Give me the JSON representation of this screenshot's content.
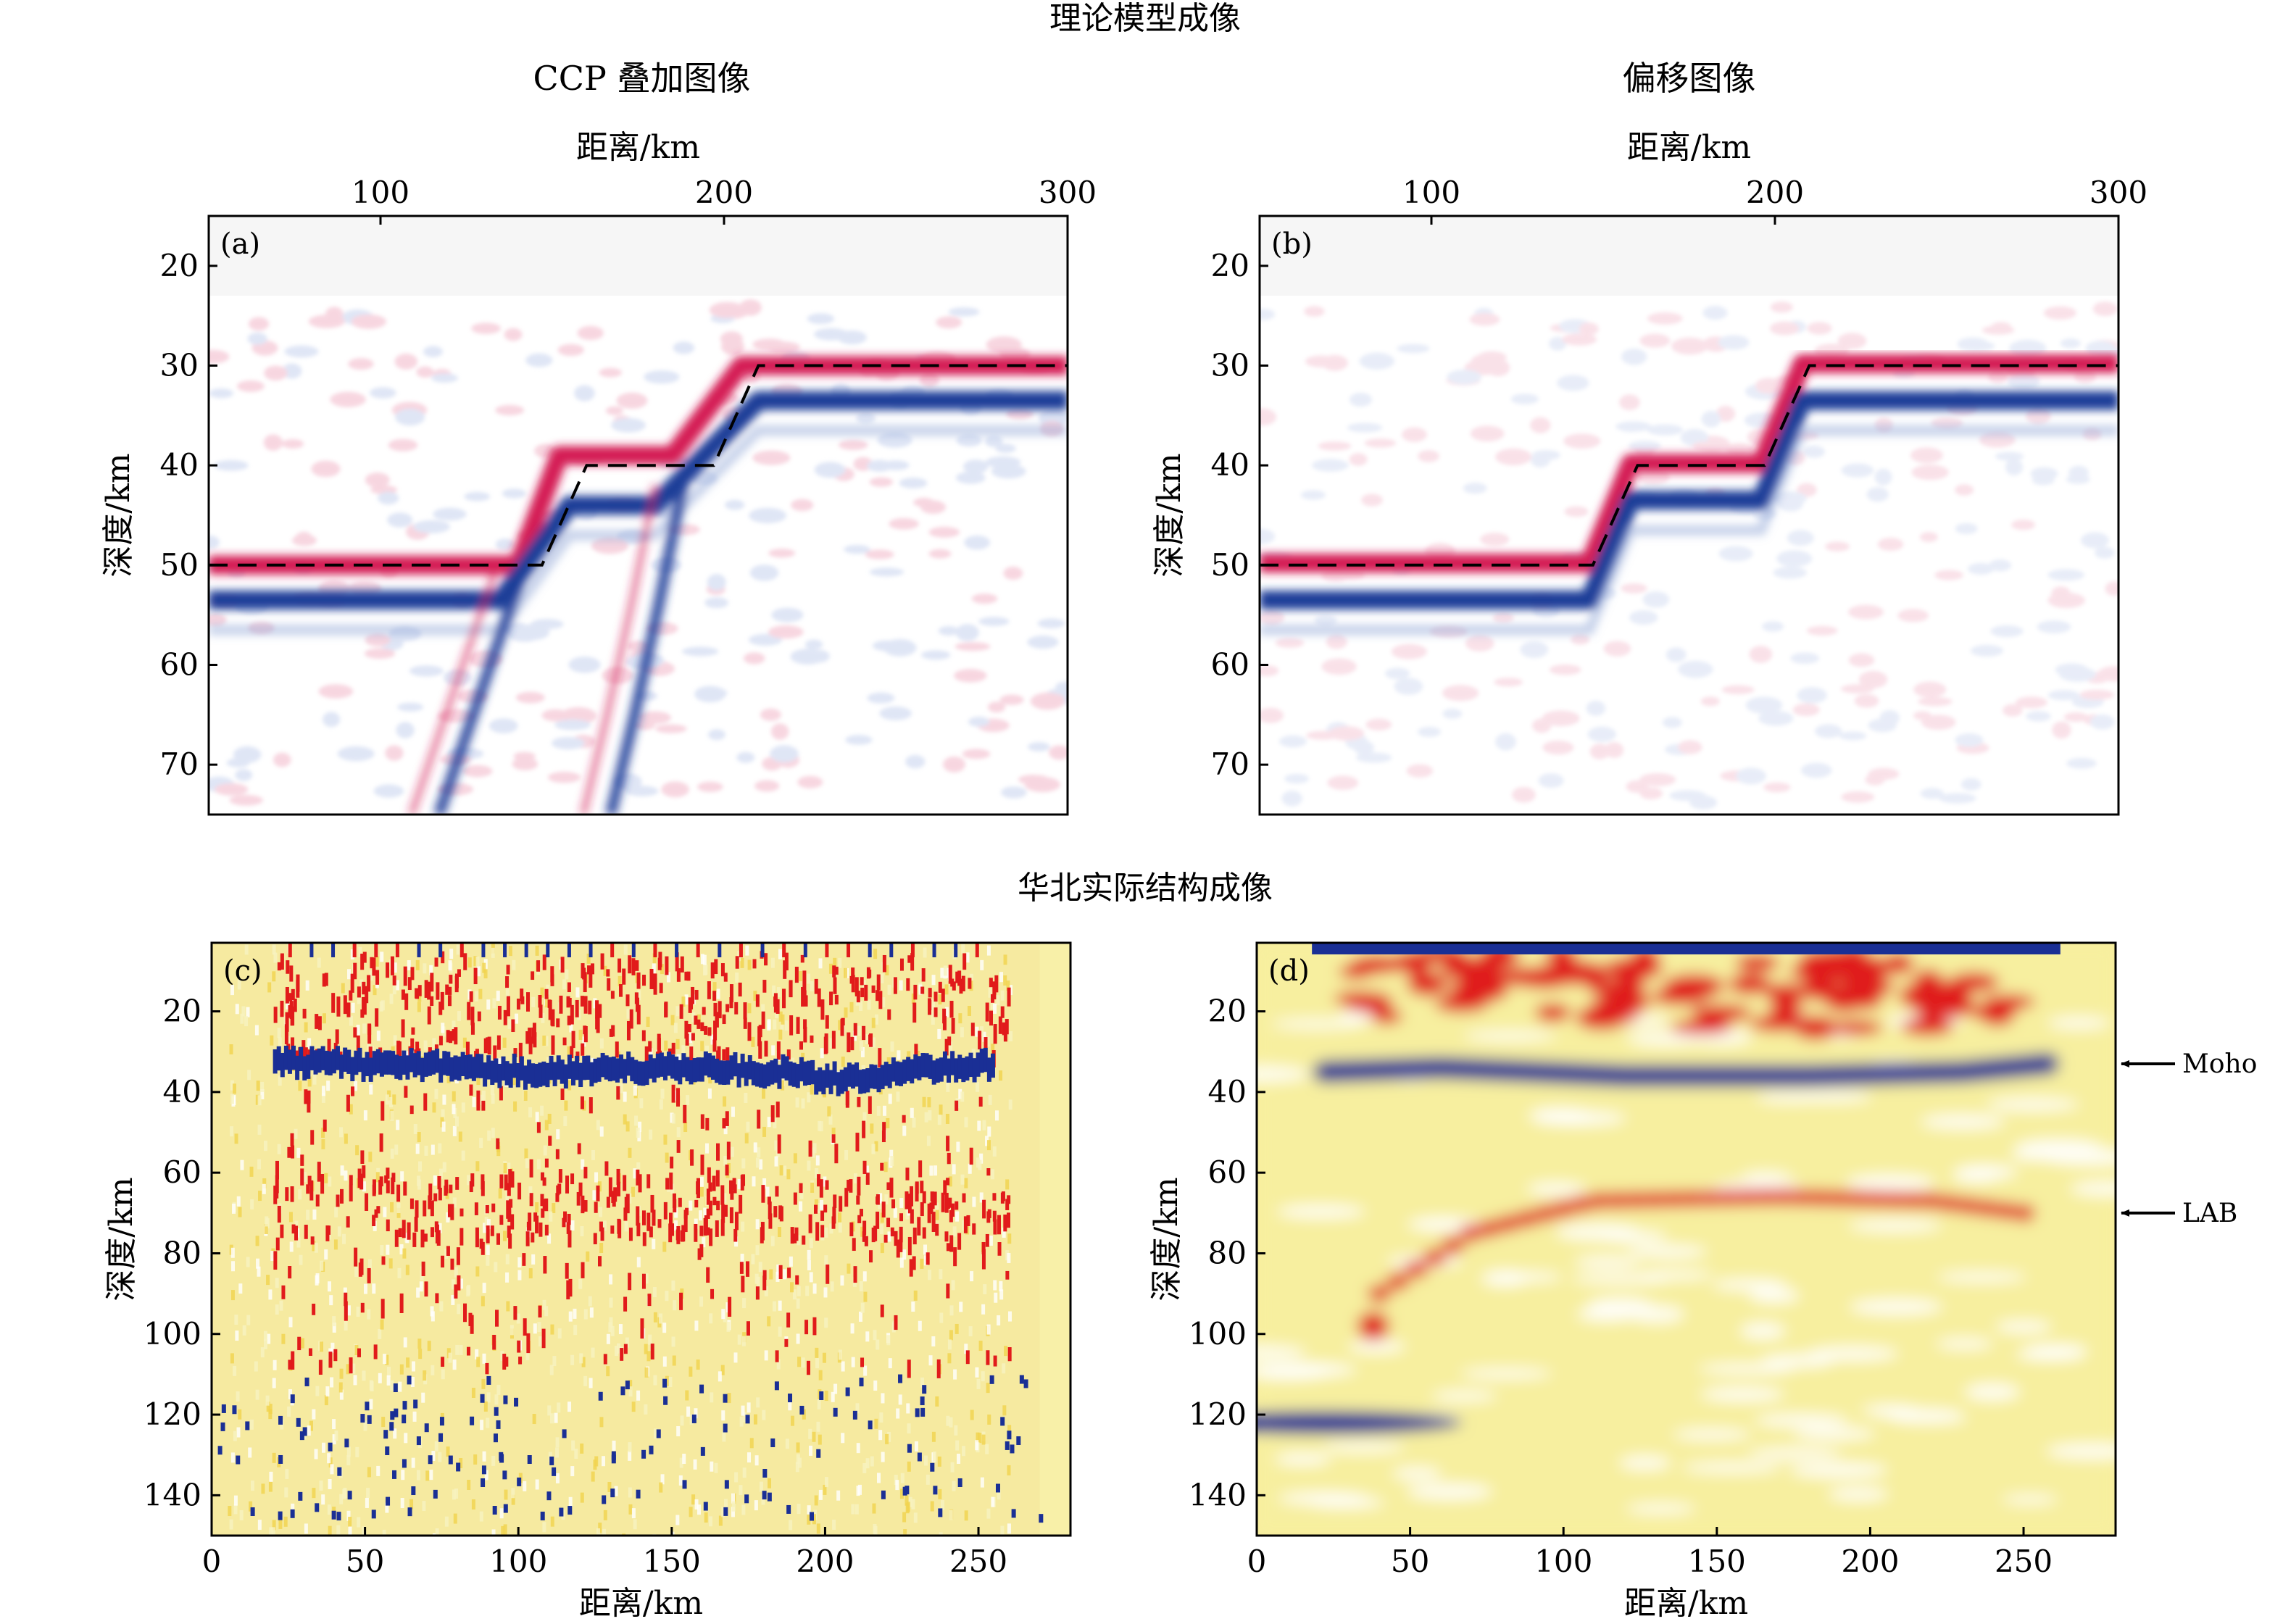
{
  "figure": {
    "section_top_title": "理论模型成像",
    "section_bottom_title": "华北实际结构成像"
  },
  "chart_data": [
    {
      "id": "a",
      "type": "heatmap",
      "panel_label": "(a)",
      "title": "CCP 叠加图像",
      "xlabel": "距离/km",
      "ylabel": "深度/km",
      "xlim": [
        50,
        300
      ],
      "ylim": [
        75,
        15
      ],
      "xticks": [
        100,
        200,
        300
      ],
      "yticks": [
        20,
        30,
        40,
        50,
        60,
        70
      ],
      "x_axis_position": "top",
      "colormap": [
        "#1f3f9a",
        "#ffffff",
        "#d6245a"
      ],
      "model_interface": {
        "x": [
          50,
          147,
          160,
          197,
          210,
          300
        ],
        "y": [
          50,
          50,
          40,
          40,
          30,
          30
        ]
      },
      "positive_band": {
        "x": [
          50,
          140,
          152,
          185,
          205,
          300
        ],
        "y": [
          50,
          50,
          39,
          39,
          30,
          30
        ]
      },
      "negative_band": {
        "x": [
          50,
          135,
          155,
          180,
          210,
          300
        ],
        "y": [
          53.5,
          53.5,
          44,
          44,
          33.5,
          33.5
        ]
      },
      "diffraction_tails": [
        {
          "x": [
            142,
            134,
            126,
            117
          ],
          "y": [
            50,
            58,
            66,
            75
          ]
        },
        {
          "x": [
            188,
            181,
            174,
            167
          ],
          "y": [
            42,
            54,
            65,
            75
          ]
        }
      ]
    },
    {
      "id": "b",
      "type": "heatmap",
      "panel_label": "(b)",
      "title": "偏移图像",
      "xlabel": "距离/km",
      "ylabel": "深度/km",
      "xlim": [
        50,
        300
      ],
      "ylim": [
        75,
        15
      ],
      "xticks": [
        100,
        200,
        300
      ],
      "yticks": [
        20,
        30,
        40,
        50,
        60,
        70
      ],
      "x_axis_position": "top",
      "colormap": [
        "#1f3f9a",
        "#ffffff",
        "#d6245a"
      ],
      "model_interface": {
        "x": [
          50,
          147,
          160,
          197,
          210,
          300
        ],
        "y": [
          50,
          50,
          40,
          40,
          30,
          30
        ]
      },
      "positive_band": {
        "x": [
          50,
          146,
          158,
          196,
          208,
          300
        ],
        "y": [
          49.8,
          49.8,
          39.8,
          39.8,
          29.8,
          29.8
        ]
      },
      "negative_band": {
        "x": [
          50,
          146,
          158,
          196,
          208,
          300
        ],
        "y": [
          53.5,
          53.5,
          43.5,
          43.5,
          33.5,
          33.5
        ]
      }
    },
    {
      "id": "c",
      "type": "heatmap",
      "panel_label": "(c)",
      "xlabel": "距离/km",
      "ylabel": "深度/km",
      "xlim": [
        0,
        280
      ],
      "ylim": [
        150,
        3
      ],
      "xticks": [
        0,
        50,
        100,
        150,
        200,
        250
      ],
      "yticks": [
        20,
        40,
        60,
        80,
        100,
        120,
        140
      ],
      "x_axis_position": "bottom",
      "colormap": [
        "#1b2f96",
        "#ffffff",
        "#f5e27a",
        "#e21d1d"
      ],
      "background": "#f8f0a8",
      "moho_band": {
        "x": [
          20,
          60,
          100,
          150,
          190,
          200,
          255
        ],
        "y": [
          33,
          33,
          35,
          34,
          35,
          37,
          33
        ]
      },
      "lab_band": {
        "x": [
          30,
          80,
          140,
          200,
          260
        ],
        "y": [
          65,
          68,
          66,
          68,
          72
        ]
      },
      "data_extent": {
        "x": [
          0,
          280
        ],
        "y": [
          3,
          150
        ]
      }
    },
    {
      "id": "d",
      "type": "heatmap",
      "panel_label": "(d)",
      "xlabel": "距离/km",
      "ylabel": "深度/km",
      "xlim": [
        0,
        280
      ],
      "ylim": [
        150,
        3
      ],
      "xticks": [
        0,
        50,
        100,
        150,
        200,
        250
      ],
      "yticks": [
        20,
        40,
        60,
        80,
        100,
        120,
        140
      ],
      "x_axis_position": "bottom",
      "colormap": [
        "#1b2f96",
        "#ffffff",
        "#f5e27a",
        "#e21d1d"
      ],
      "background": "#f7ee9e",
      "moho_band": {
        "x": [
          22,
          60,
          120,
          180,
          230,
          258
        ],
        "y": [
          35,
          34,
          36,
          36,
          35,
          33
        ]
      },
      "lab_band": {
        "x": [
          40,
          70,
          110,
          170,
          220,
          250
        ],
        "y": [
          90,
          75,
          67,
          66,
          67,
          70
        ]
      },
      "annotations": [
        {
          "text": "Moho",
          "depth": 33
        },
        {
          "text": "LAB",
          "depth": 70
        }
      ]
    }
  ]
}
